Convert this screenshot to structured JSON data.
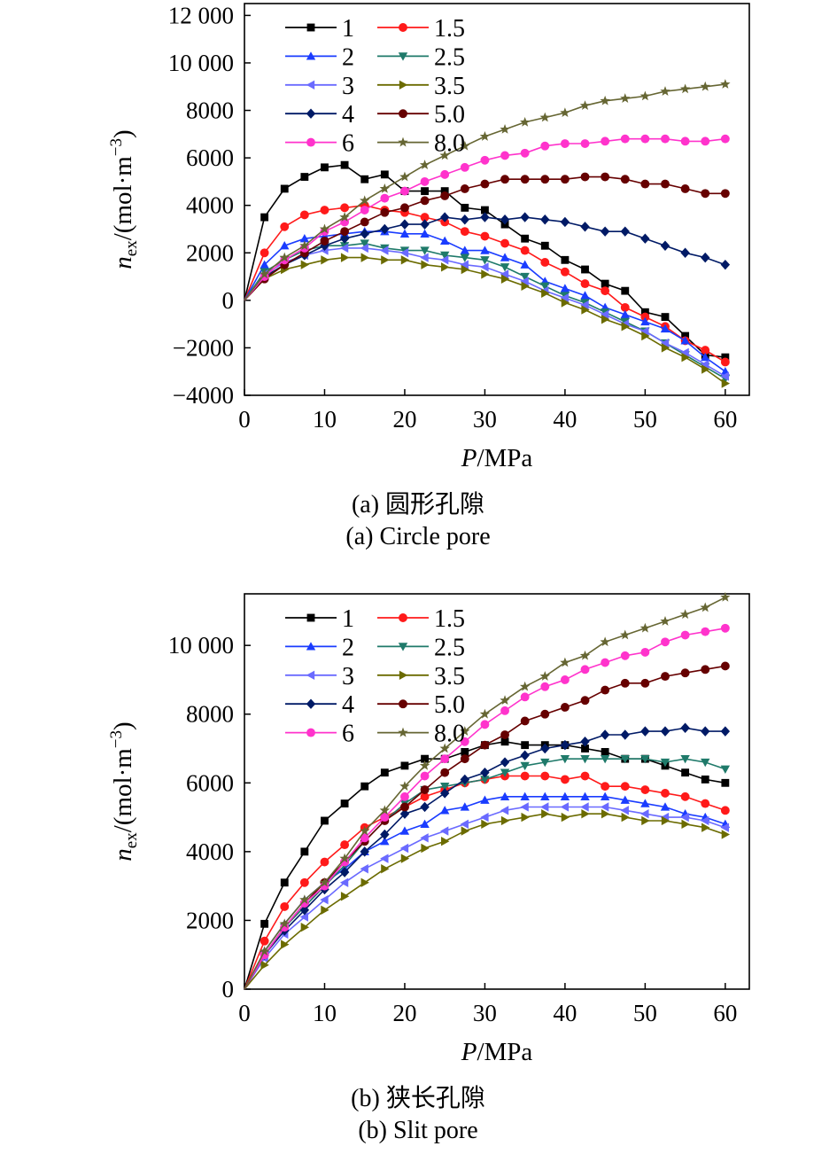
{
  "chart_data": [
    {
      "type": "line",
      "caption_cn": "(a) 圆形孔隙",
      "caption_en": "(a) Circle pore",
      "xlabel": "/MPa",
      "xlabel_italic": "P",
      "ylabel_italic": "n",
      "ylabel_sub": "ex",
      "ylabel_rest": "/(mol·m",
      "ylabel_sup": "−3",
      "ylabel_close": ")",
      "xlim": [
        0,
        63
      ],
      "ylim": [
        -4000,
        12500
      ],
      "xticks": [
        0,
        10,
        20,
        30,
        40,
        50,
        60
      ],
      "xtick_labels": [
        "0",
        "10",
        "20",
        "30",
        "40",
        "50",
        "60"
      ],
      "yticks": [
        -4000,
        -2000,
        0,
        2000,
        4000,
        6000,
        8000,
        10000,
        12000
      ],
      "ytick_labels": [
        "−4000",
        "−2000",
        "0",
        "2000",
        "4000",
        "6000",
        "8000",
        "10 000",
        "12 000"
      ],
      "legend_position": "top-left",
      "x": [
        0,
        2.5,
        5,
        7.5,
        10,
        12.5,
        15,
        17.5,
        20,
        22.5,
        25,
        27.5,
        30,
        32.5,
        35,
        37.5,
        40,
        42.5,
        45,
        47.5,
        50,
        52.5,
        55,
        57.5,
        60
      ],
      "series": [
        {
          "name": "1",
          "color": "#000000",
          "marker": "square",
          "values": [
            0,
            3500,
            4700,
            5200,
            5600,
            5700,
            5100,
            5300,
            4600,
            4600,
            4600,
            3900,
            3800,
            3200,
            2600,
            2300,
            1700,
            1300,
            700,
            400,
            -500,
            -700,
            -1500,
            -2300,
            -2400
          ]
        },
        {
          "name": "1.5",
          "color": "#ff1a1a",
          "marker": "circle",
          "values": [
            0,
            2000,
            3100,
            3600,
            3800,
            3900,
            4000,
            3800,
            3700,
            3500,
            3300,
            2900,
            2700,
            2400,
            2100,
            1600,
            1200,
            700,
            400,
            -300,
            -700,
            -1100,
            -1700,
            -2100,
            -2600
          ]
        },
        {
          "name": "2",
          "color": "#1a3cff",
          "marker": "triangle-up",
          "values": [
            0,
            1500,
            2300,
            2600,
            2700,
            2800,
            2900,
            2900,
            2800,
            2800,
            2500,
            2100,
            2100,
            1800,
            1500,
            800,
            500,
            200,
            -300,
            -600,
            -900,
            -1200,
            -1700,
            -2400,
            -3000
          ]
        },
        {
          "name": "2.5",
          "color": "#1f7a6a",
          "marker": "triangle-down",
          "values": [
            0,
            1200,
            1700,
            2100,
            2300,
            2300,
            2400,
            2200,
            2100,
            2100,
            1900,
            1800,
            1700,
            1400,
            1000,
            600,
            200,
            -100,
            -500,
            -900,
            -1300,
            -1800,
            -2300,
            -2800,
            -3300
          ]
        },
        {
          "name": "3",
          "color": "#6a6aff",
          "marker": "triangle-left",
          "values": [
            0,
            1100,
            1600,
            1900,
            2100,
            2200,
            2200,
            2100,
            2000,
            1800,
            1700,
            1500,
            1400,
            1100,
            800,
            400,
            100,
            -200,
            -600,
            -1000,
            -1300,
            -1800,
            -2200,
            -2700,
            -3200
          ]
        },
        {
          "name": "3.5",
          "color": "#6b6b00",
          "marker": "triangle-right",
          "values": [
            0,
            900,
            1300,
            1500,
            1700,
            1800,
            1800,
            1700,
            1700,
            1500,
            1400,
            1300,
            1100,
            900,
            600,
            300,
            -100,
            -400,
            -800,
            -1100,
            -1500,
            -2000,
            -2400,
            -2900,
            -3500
          ]
        },
        {
          "name": "4",
          "color": "#001a66",
          "marker": "diamond",
          "values": [
            0,
            1000,
            1500,
            1900,
            2300,
            2600,
            2800,
            3000,
            3200,
            3200,
            3500,
            3400,
            3500,
            3400,
            3500,
            3400,
            3300,
            3100,
            2900,
            2900,
            2600,
            2300,
            2000,
            1800,
            1500
          ]
        },
        {
          "name": "5.0",
          "color": "#660000",
          "marker": "circle",
          "values": [
            0,
            900,
            1500,
            2000,
            2500,
            2900,
            3300,
            3700,
            3900,
            4200,
            4400,
            4700,
            4900,
            5100,
            5100,
            5100,
            5100,
            5200,
            5200,
            5100,
            4900,
            4900,
            4700,
            4500,
            4500
          ]
        },
        {
          "name": "6",
          "color": "#ff33cc",
          "marker": "circle",
          "values": [
            0,
            1000,
            1700,
            2200,
            2900,
            3300,
            3800,
            4300,
            4600,
            5000,
            5300,
            5600,
            5900,
            6100,
            6200,
            6500,
            6600,
            6600,
            6700,
            6800,
            6800,
            6800,
            6700,
            6700,
            6800
          ]
        },
        {
          "name": "8.0",
          "color": "#666633",
          "marker": "star",
          "values": [
            0,
            1100,
            1800,
            2300,
            3000,
            3500,
            4200,
            4700,
            5200,
            5700,
            6100,
            6500,
            6900,
            7200,
            7500,
            7700,
            7900,
            8200,
            8400,
            8500,
            8600,
            8800,
            8900,
            9000,
            9100
          ]
        }
      ]
    },
    {
      "type": "line",
      "caption_cn": "(b) 狭长孔隙",
      "caption_en": "(b) Slit pore",
      "xlabel": "/MPa",
      "xlabel_italic": "P",
      "ylabel_italic": "n",
      "ylabel_sub": "ex",
      "ylabel_rest": "/(mol·m",
      "ylabel_sup": "−3",
      "ylabel_close": ")",
      "xlim": [
        0,
        63
      ],
      "ylim": [
        0,
        11500
      ],
      "xticks": [
        0,
        10,
        20,
        30,
        40,
        50,
        60
      ],
      "xtick_labels": [
        "0",
        "10",
        "20",
        "30",
        "40",
        "50",
        "60"
      ],
      "yticks": [
        0,
        2000,
        4000,
        6000,
        8000,
        10000
      ],
      "ytick_labels": [
        "0",
        "2000",
        "4000",
        "6000",
        "8000",
        "10 000"
      ],
      "legend_position": "top-left",
      "x": [
        0,
        2.5,
        5,
        7.5,
        10,
        12.5,
        15,
        17.5,
        20,
        22.5,
        25,
        27.5,
        30,
        32.5,
        35,
        37.5,
        40,
        42.5,
        45,
        47.5,
        50,
        52.5,
        55,
        57.5,
        60
      ],
      "series": [
        {
          "name": "1",
          "color": "#000000",
          "marker": "square",
          "values": [
            0,
            1900,
            3100,
            4000,
            4900,
            5400,
            5900,
            6300,
            6500,
            6700,
            6700,
            6900,
            7100,
            7200,
            7100,
            7100,
            7100,
            7000,
            6900,
            6700,
            6700,
            6500,
            6300,
            6100,
            6000
          ]
        },
        {
          "name": "1.5",
          "color": "#ff1a1a",
          "marker": "circle",
          "values": [
            0,
            1400,
            2400,
            3100,
            3700,
            4200,
            4700,
            5000,
            5300,
            5600,
            5800,
            6000,
            6100,
            6200,
            6200,
            6200,
            6100,
            6200,
            5900,
            5900,
            5800,
            5700,
            5600,
            5400,
            5200
          ]
        },
        {
          "name": "2",
          "color": "#1a3cff",
          "marker": "triangle-up",
          "values": [
            0,
            1100,
            1900,
            2600,
            3100,
            3500,
            4000,
            4300,
            4600,
            4800,
            5200,
            5300,
            5500,
            5600,
            5600,
            5600,
            5600,
            5600,
            5600,
            5500,
            5400,
            5300,
            5100,
            5000,
            4800
          ]
        },
        {
          "name": "2.5",
          "color": "#1f7a6a",
          "marker": "triangle-down",
          "values": [
            0,
            1000,
            1800,
            2400,
            3000,
            3600,
            4300,
            4900,
            5400,
            5800,
            5900,
            6000,
            6100,
            6300,
            6500,
            6600,
            6700,
            6700,
            6700,
            6700,
            6700,
            6600,
            6700,
            6600,
            6400
          ]
        },
        {
          "name": "3",
          "color": "#6a6aff",
          "marker": "triangle-left",
          "values": [
            0,
            900,
            1600,
            2100,
            2600,
            3100,
            3500,
            3800,
            4100,
            4400,
            4600,
            4800,
            5000,
            5200,
            5300,
            5300,
            5300,
            5300,
            5300,
            5200,
            5100,
            5000,
            5000,
            4900,
            4700
          ]
        },
        {
          "name": "3.5",
          "color": "#6b6b00",
          "marker": "triangle-right",
          "values": [
            0,
            700,
            1300,
            1800,
            2300,
            2700,
            3100,
            3500,
            3800,
            4100,
            4300,
            4600,
            4800,
            4900,
            5000,
            5100,
            5000,
            5100,
            5100,
            5000,
            4900,
            4900,
            4800,
            4700,
            4500
          ]
        },
        {
          "name": "4",
          "color": "#001a66",
          "marker": "diamond",
          "values": [
            0,
            1000,
            1700,
            2300,
            2900,
            3400,
            4000,
            4500,
            5100,
            5300,
            5700,
            6100,
            6300,
            6600,
            6800,
            7000,
            7100,
            7200,
            7400,
            7400,
            7500,
            7500,
            7600,
            7500,
            7500
          ]
        },
        {
          "name": "5.0",
          "color": "#660000",
          "marker": "circle",
          "values": [
            0,
            1000,
            1800,
            2500,
            3100,
            3700,
            4300,
            4900,
            5300,
            5800,
            6300,
            6700,
            7100,
            7400,
            7800,
            8000,
            8200,
            8400,
            8700,
            8900,
            8900,
            9100,
            9200,
            9300,
            9400
          ]
        },
        {
          "name": "6",
          "color": "#ff33cc",
          "marker": "circle",
          "values": [
            0,
            1000,
            1800,
            2500,
            3000,
            3700,
            4400,
            5000,
            5600,
            6200,
            6700,
            7200,
            7700,
            8100,
            8500,
            8800,
            9000,
            9300,
            9500,
            9700,
            9800,
            10100,
            10300,
            10400,
            10500
          ]
        },
        {
          "name": "8.0",
          "color": "#666633",
          "marker": "star",
          "values": [
            0,
            1100,
            1900,
            2600,
            3100,
            3800,
            4600,
            5200,
            5900,
            6500,
            7000,
            7500,
            8000,
            8400,
            8800,
            9100,
            9500,
            9700,
            10100,
            10300,
            10500,
            10700,
            10900,
            11100,
            11400
          ]
        }
      ]
    }
  ]
}
